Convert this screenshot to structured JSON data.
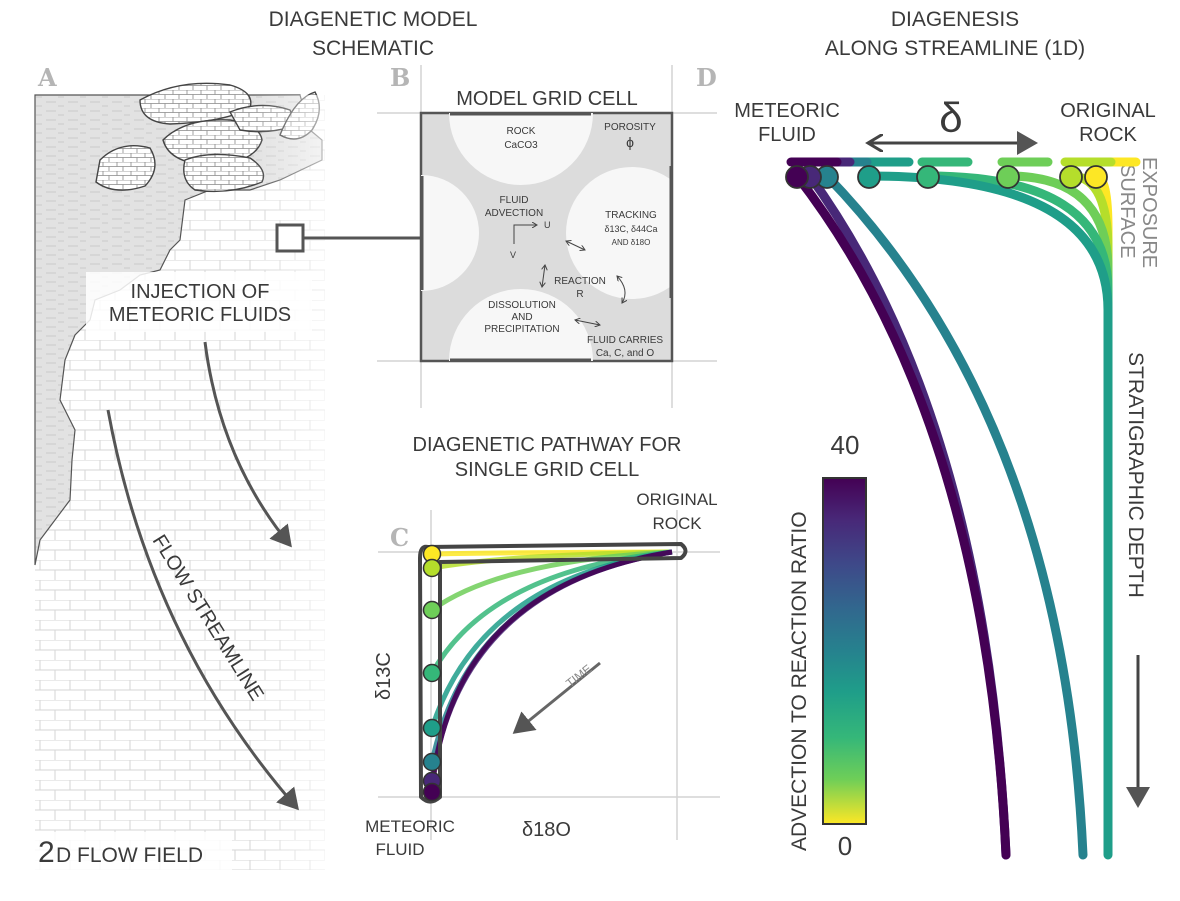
{
  "header": {
    "left_title_1": "DIAGENETIC MODEL",
    "left_title_2": "SCHEMATIC",
    "right_title_1": "DIAGENESIS",
    "right_title_2": "ALONG STREAMLINE (1D)"
  },
  "panel_a": {
    "letter": "A",
    "injection_1": "INJECTION OF",
    "injection_2": "METEORIC FLUIDS",
    "streamline": "FLOW STREAMLINE",
    "flow_field_num": "2",
    "flow_field_text": "D FLOW FIELD"
  },
  "panel_b": {
    "letter": "B",
    "title": "MODEL GRID CELL",
    "rock_1": "ROCK",
    "rock_2": "CaCO3",
    "porosity": "POROSITY",
    "phi": "ϕ",
    "advection_1": "FLUID",
    "advection_2": "ADVECTION",
    "u": "U",
    "v": "V",
    "tracking_1": "TRACKING",
    "tracking_2": "δ13C, δ44Ca",
    "tracking_3": "AND δ18O",
    "reaction_1": "REACTION",
    "reaction_2": "R",
    "dissolution_1": "DISSOLUTION",
    "dissolution_2": "AND",
    "dissolution_3": "PRECIPITATION",
    "carries_1": "FLUID CARRIES",
    "carries_2": "Ca, C, and O"
  },
  "panel_c": {
    "letter": "C",
    "title_1": "DIAGENETIC PATHWAY FOR",
    "title_2": "SINGLE GRID CELL",
    "original_1": "ORIGINAL",
    "original_2": "ROCK",
    "meteoric_1": "METEORIC",
    "meteoric_2": "FLUID",
    "ylabel": "δ13C",
    "xlabel": "δ18O",
    "time": "TIME"
  },
  "panel_d": {
    "letter": "D",
    "meteoric_1": "METEORIC",
    "meteoric_2": "FLUID",
    "original_1": "ORIGINAL",
    "original_2": "ROCK",
    "delta": "δ",
    "exposure_1": "EXPOSURE",
    "exposure_2": "SURFACE",
    "depth": "STRATIGRAPHIC DEPTH",
    "colorbar_label": "ADVECTION TO REACTION RATIO",
    "colorbar_max": "40",
    "colorbar_min": "0"
  },
  "colors": {
    "viridis": [
      "#fde725",
      "#b5de2b",
      "#6ece58",
      "#35b779",
      "#1f9e89",
      "#26828e",
      "#31688e",
      "#3e4989",
      "#482878",
      "#440154"
    ],
    "text": "#3a3a3a",
    "grid_grey": "#d4d4d4",
    "fluid_grey": "#dcdcdc"
  },
  "icons": [
    "brick-pattern",
    "rock-clasts",
    "arrow",
    "double-arrow"
  ]
}
